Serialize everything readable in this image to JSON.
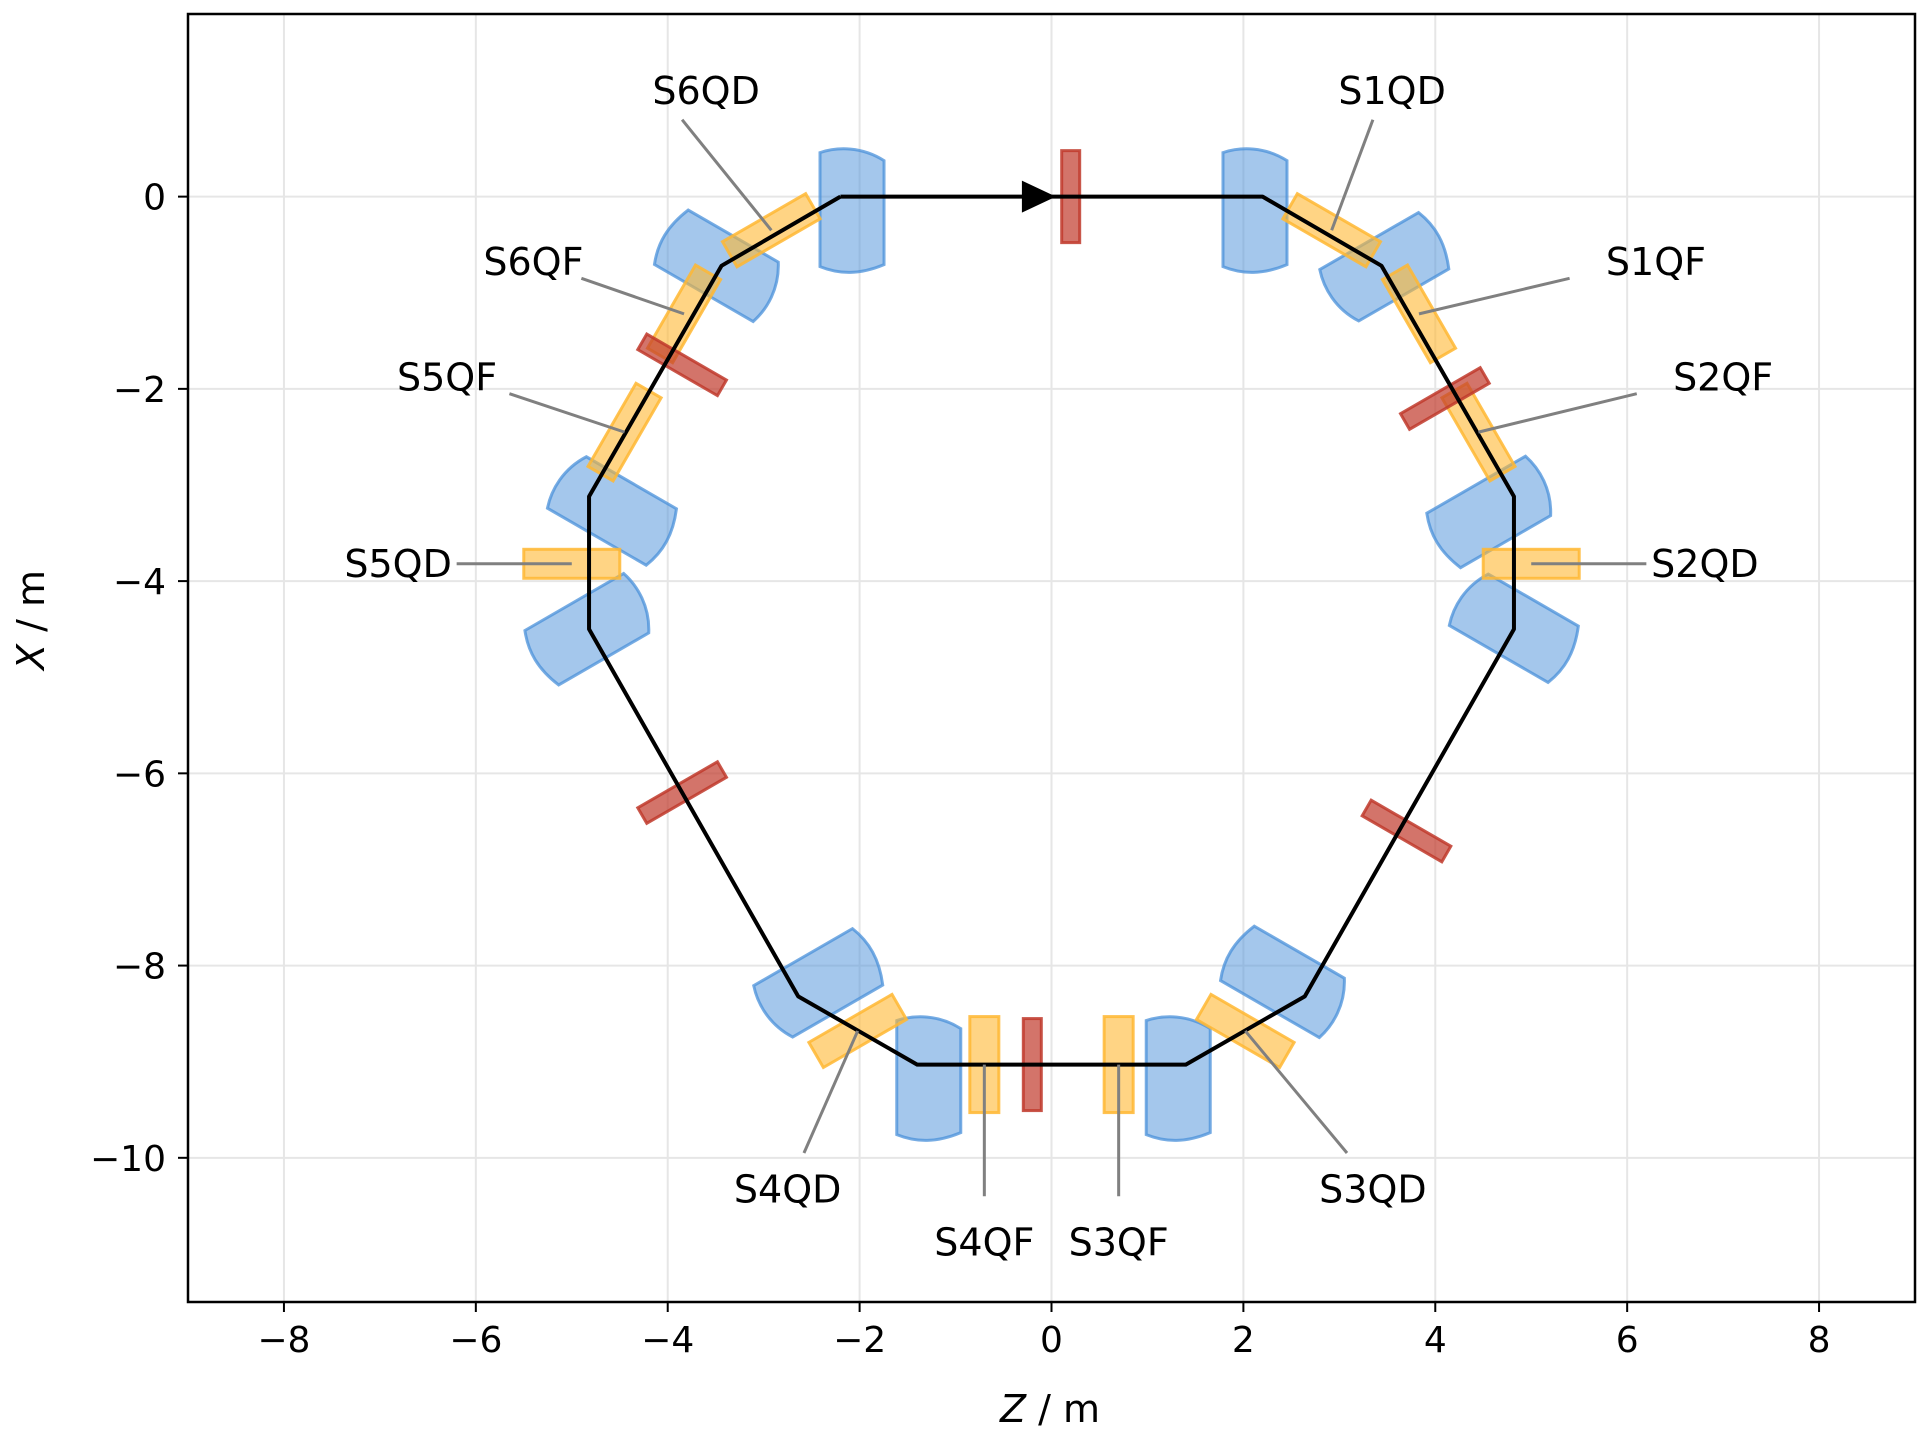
{
  "chart_data": {
    "type": "scatter",
    "title": "",
    "xlabel_var": "Z",
    "xlabel_unit": " / m",
    "ylabel_var": "X",
    "ylabel_unit": " / m",
    "xlim": [
      -9,
      9
    ],
    "ylim": [
      -11.5,
      1.9
    ],
    "x_ticks": [
      -8,
      -6,
      -4,
      -2,
      0,
      2,
      4,
      6,
      8
    ],
    "y_ticks": [
      0,
      -2,
      -4,
      -6,
      -8,
      -10
    ],
    "grid": true,
    "colors": {
      "orbit": "#000000",
      "dipole": "#4a90d9",
      "quadrupole": "#ffb732",
      "corrector": "#c0392b",
      "leader": "#808080"
    },
    "beam_direction_arrow": {
      "z": -0.1,
      "x": 0
    },
    "orbit": {
      "z": [
        -2.2,
        2.2,
        3.44,
        4.82,
        4.82,
        2.64,
        1.4,
        -1.4,
        -2.64,
        -4.82,
        -4.82,
        -3.44,
        -2.2
      ],
      "x": [
        0,
        0,
        -0.72,
        -3.12,
        -4.5,
        -8.32,
        -9.03,
        -9.03,
        -8.32,
        -4.5,
        -3.12,
        -0.72,
        0
      ]
    },
    "dipoles": [
      {
        "z": -2.1,
        "x": 0,
        "angle": 0,
        "dir": -1
      },
      {
        "z": -3.35,
        "x": -0.8,
        "angle": 300,
        "dir": 1
      },
      {
        "z": -4.7,
        "x": -3.2,
        "angle": 300,
        "dir": -1
      },
      {
        "z": -4.7,
        "x": -4.42,
        "angle": 60,
        "dir": -1
      },
      {
        "z": -2.55,
        "x": -8.25,
        "angle": 60,
        "dir": 1
      },
      {
        "z": -1.3,
        "x": -9.03,
        "angle": 0,
        "dir": -1
      },
      {
        "z": 1.3,
        "x": -9.03,
        "angle": 0,
        "dir": -1
      },
      {
        "z": 2.55,
        "x": -8.25,
        "angle": 300,
        "dir": 1
      },
      {
        "z": 4.7,
        "x": -4.42,
        "angle": 300,
        "dir": -1
      },
      {
        "z": 4.7,
        "x": -3.2,
        "angle": 60,
        "dir": -1
      },
      {
        "z": 3.35,
        "x": -0.8,
        "angle": 60,
        "dir": 1
      },
      {
        "z": 2.1,
        "x": 0,
        "angle": 0,
        "dir": -1
      }
    ],
    "quadrupoles": [
      {
        "name": "S1QD",
        "z": 2.92,
        "x": -0.35,
        "angle": 30,
        "label": {
          "z": 3.55,
          "x": 1.1,
          "anchor": "middle"
        },
        "leader_from": {
          "z": 3.35,
          "x": 0.8
        }
      },
      {
        "name": "S1QF",
        "z": 3.83,
        "x": -1.22,
        "angle": 60,
        "label": {
          "z": 6.3,
          "x": -0.68,
          "anchor": "middle"
        },
        "leader_from": {
          "z": 5.4,
          "x": -0.85
        }
      },
      {
        "name": "S2QF",
        "z": 4.45,
        "x": -2.45,
        "angle": 60,
        "label": {
          "z": 7.0,
          "x": -1.88,
          "anchor": "middle"
        },
        "leader_from": {
          "z": 6.1,
          "x": -2.05
        }
      },
      {
        "name": "S2QD",
        "z": 5.0,
        "x": -3.82,
        "angle": 0,
        "label": {
          "z": 6.25,
          "x": -3.82,
          "anchor": "start"
        },
        "leader_from": {
          "z": 6.2,
          "x": -3.82
        }
      },
      {
        "name": "S3QD",
        "z": 2.02,
        "x": -8.68,
        "angle": 30,
        "label": {
          "z": 3.35,
          "x": -10.33,
          "anchor": "middle"
        },
        "leader_from": {
          "z": 3.08,
          "x": -9.95
        }
      },
      {
        "name": "S3QF",
        "z": 0.7,
        "x": -9.03,
        "angle": 90,
        "label": {
          "z": 0.7,
          "x": -10.88,
          "anchor": "middle"
        },
        "leader_from": {
          "z": 0.7,
          "x": -10.4
        }
      },
      {
        "name": "S4QF",
        "z": -0.7,
        "x": -9.03,
        "angle": 90,
        "label": {
          "z": -0.7,
          "x": -10.88,
          "anchor": "middle"
        },
        "leader_from": {
          "z": -0.7,
          "x": -10.4
        }
      },
      {
        "name": "S4QD",
        "z": -2.02,
        "x": -8.68,
        "angle": 330,
        "label": {
          "z": -2.75,
          "x": -10.33,
          "anchor": "middle"
        },
        "leader_from": {
          "z": -2.58,
          "x": -9.95
        }
      },
      {
        "name": "S5QD",
        "z": -5.0,
        "x": -3.82,
        "angle": 0,
        "label": {
          "z": -6.25,
          "x": -3.82,
          "anchor": "end"
        },
        "leader_from": {
          "z": -6.2,
          "x": -3.82
        }
      },
      {
        "name": "S5QF",
        "z": -4.45,
        "x": -2.45,
        "angle": 300,
        "label": {
          "z": -6.3,
          "x": -1.88,
          "anchor": "middle"
        },
        "leader_from": {
          "z": -5.65,
          "x": -2.05
        }
      },
      {
        "name": "S6QF",
        "z": -3.83,
        "x": -1.22,
        "angle": 300,
        "label": {
          "z": -5.4,
          "x": -0.68,
          "anchor": "middle"
        },
        "leader_from": {
          "z": -4.9,
          "x": -0.85
        }
      },
      {
        "name": "S6QD",
        "z": -2.92,
        "x": -0.35,
        "angle": 330,
        "label": {
          "z": -3.6,
          "x": 1.1,
          "anchor": "middle"
        },
        "leader_from": {
          "z": -3.85,
          "x": 0.8
        }
      }
    ],
    "correctors": [
      {
        "z": 0.2,
        "x": 0,
        "angle": 90
      },
      {
        "z": 4.1,
        "x": -2.1,
        "angle": 330
      },
      {
        "z": 3.7,
        "x": -6.6,
        "angle": 30
      },
      {
        "z": -0.2,
        "x": -9.03,
        "angle": 90
      },
      {
        "z": -3.85,
        "x": -6.2,
        "angle": 330
      },
      {
        "z": -3.85,
        "x": -1.75,
        "angle": 30
      }
    ]
  }
}
